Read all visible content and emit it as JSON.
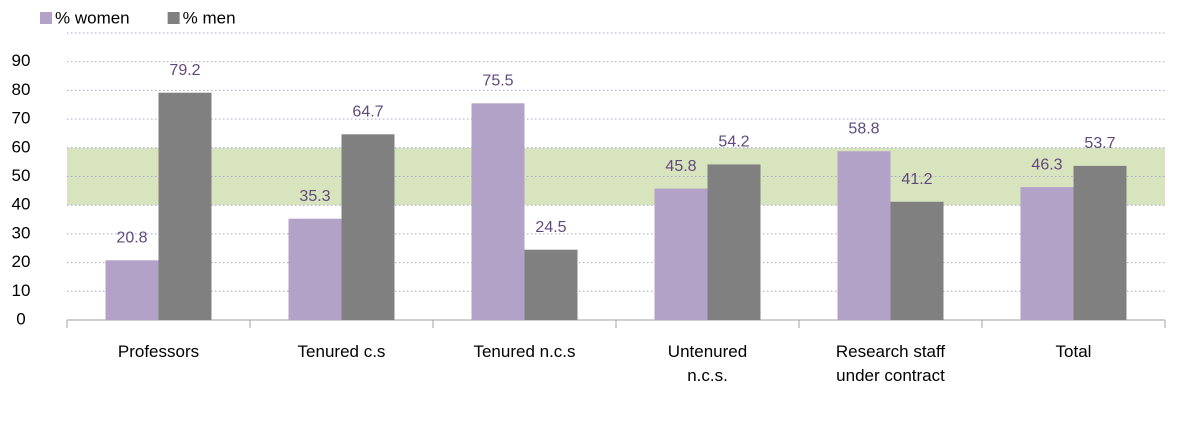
{
  "chart_data": {
    "type": "bar",
    "categories": [
      "Professors",
      "Tenured c.s",
      "Tenured n.c.s",
      "Untenured n.c.s.",
      "Research staff under contract",
      "Total"
    ],
    "series": [
      {
        "name": "% women",
        "color": "#b3a2c7",
        "values": [
          20.8,
          35.3,
          75.5,
          45.8,
          58.8,
          46.3
        ]
      },
      {
        "name": "% men",
        "color": "#808080",
        "values": [
          79.2,
          64.7,
          24.5,
          54.2,
          41.2,
          53.7
        ]
      }
    ],
    "ylim": [
      0,
      100
    ],
    "yticks": [
      0,
      10,
      20,
      30,
      40,
      50,
      60,
      70,
      80,
      90
    ],
    "band": {
      "range": [
        40,
        60
      ],
      "color": "#d7e4bd"
    },
    "grid": true,
    "legend": "top-left",
    "label_color": "#604a7b"
  }
}
